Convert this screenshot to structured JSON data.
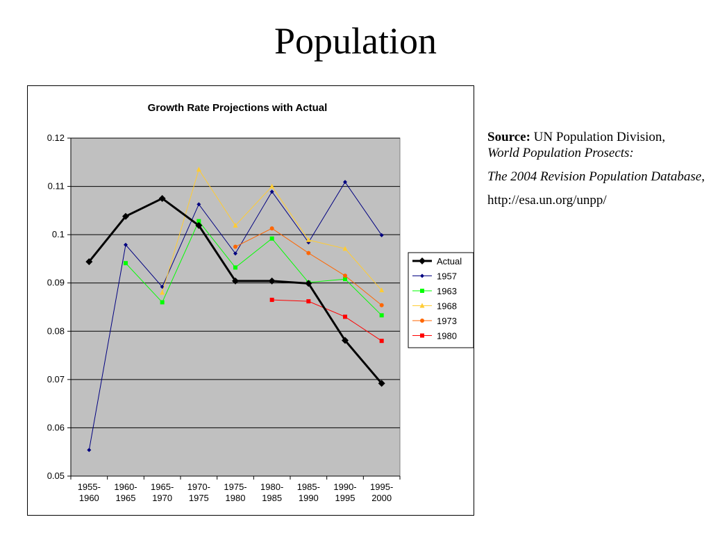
{
  "slide": {
    "title": "Population",
    "source_label": "Source:",
    "source_org": "UN Population Division,",
    "source_pub": "World Population Prosects:",
    "source_edition": "The 2004 Revision Population Database,",
    "source_url": "http://esa.un.org/unpp/"
  },
  "chart_data": {
    "type": "line",
    "title": "Growth Rate Projections with Actual",
    "xlabel": "",
    "ylabel": "",
    "categories": [
      "1955-1960",
      "1960-1965",
      "1965-1970",
      "1970-1975",
      "1975-1980",
      "1980-1985",
      "1985-1990",
      "1990-1995",
      "1995-2000"
    ],
    "category_lines": [
      [
        "1955-",
        "1960"
      ],
      [
        "1960-",
        "1965"
      ],
      [
        "1965-",
        "1970"
      ],
      [
        "1970-",
        "1975"
      ],
      [
        "1975-",
        "1980"
      ],
      [
        "1980-",
        "1985"
      ],
      [
        "1985-",
        "1990"
      ],
      [
        "1990-",
        "1995"
      ],
      [
        "1995-",
        "2000"
      ]
    ],
    "ylim": [
      0.05,
      0.12
    ],
    "yticks": [
      "0.05",
      "0.06",
      "0.07",
      "0.08",
      "0.09",
      "0.1",
      "0.11",
      "0.12"
    ],
    "grid": true,
    "legend": "right",
    "series": [
      {
        "name": "Actual",
        "color": "#000000",
        "marker": "diamond",
        "values": [
          0.0944,
          0.1038,
          0.1075,
          0.1019,
          0.0904,
          0.0904,
          0.0899,
          0.0781,
          0.0692
        ]
      },
      {
        "name": "1957",
        "color": "#000080",
        "marker": "diamond",
        "values": [
          0.0554,
          0.0979,
          0.0892,
          0.1063,
          0.0961,
          0.1089,
          0.0984,
          0.1109,
          0.0999
        ]
      },
      {
        "name": "1963",
        "color": "#00FF00",
        "marker": "square",
        "values": [
          null,
          0.0941,
          0.086,
          0.1028,
          0.0932,
          0.0992,
          0.0901,
          0.0908,
          0.0833
        ]
      },
      {
        "name": "1968",
        "color": "#FFCC33",
        "marker": "triangle",
        "values": [
          null,
          null,
          0.088,
          0.1135,
          0.1019,
          0.11,
          0.0989,
          0.0971,
          0.0885
        ]
      },
      {
        "name": "1973",
        "color": "#FF6600",
        "marker": "circle",
        "values": [
          null,
          null,
          null,
          null,
          0.0975,
          0.1013,
          0.0962,
          0.0915,
          0.0854
        ]
      },
      {
        "name": "1980",
        "color": "#FF0000",
        "marker": "square",
        "values": [
          null,
          null,
          null,
          null,
          null,
          0.0865,
          0.0862,
          0.083,
          0.078
        ]
      }
    ]
  }
}
